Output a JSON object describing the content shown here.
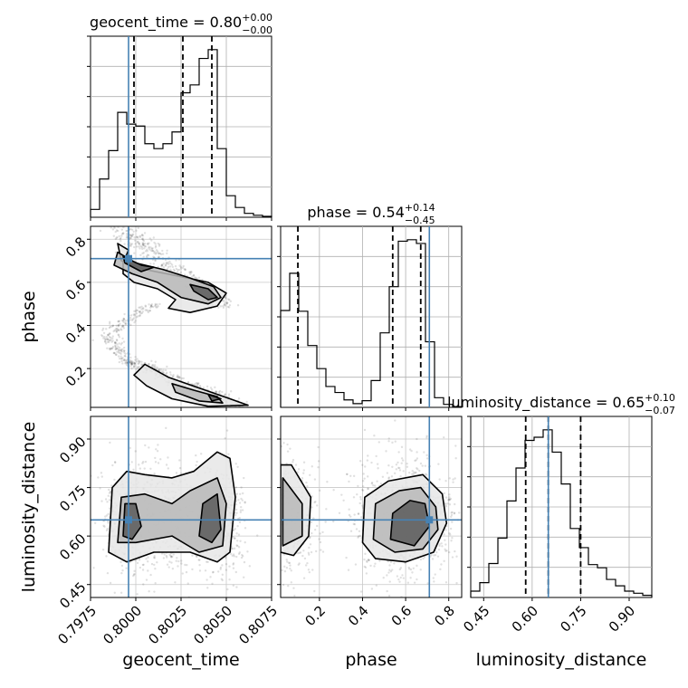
{
  "chart_data": {
    "type": "corner",
    "parameters": [
      {
        "key": "geocent_time",
        "label": "geocent_time",
        "range": [
          0.7975,
          0.8075
        ],
        "truth": 0.7996,
        "title": {
          "name": "geocent_time",
          "median": "0.80",
          "plus": "+0.00",
          "minus": "−0.00"
        },
        "quantiles": [
          0.7999,
          0.8026,
          0.8042
        ],
        "ticks": [
          "0.7975",
          "0.8000",
          "0.8025",
          "0.8050",
          "0.8075"
        ],
        "hist": {
          "edges_range": [
            0.7975,
            0.8075
          ],
          "counts": [
            0.8,
            3.9,
            6.8,
            10.7,
            9.5,
            9.3,
            7.5,
            7.0,
            7.5,
            8.7,
            12.7,
            13.5,
            16.2,
            17.1,
            7.0,
            2.2,
            1.0,
            0.4,
            0.2,
            0.1
          ]
        }
      },
      {
        "key": "phase",
        "label": "phase",
        "range": [
          0.02,
          0.86
        ],
        "truth": 0.71,
        "title": {
          "name": "phase",
          "median": "0.54",
          "plus": "+0.14",
          "minus": "−0.45"
        },
        "quantiles": [
          0.1,
          0.54,
          0.67
        ],
        "ticks": [
          "0.2",
          "0.4",
          "0.6",
          "0.8"
        ],
        "hist": {
          "edges_range": [
            0.02,
            0.86
          ],
          "counts": [
            13.0,
            18.0,
            12.9,
            8.3,
            5.2,
            2.8,
            2.0,
            1.0,
            0.5,
            0.9,
            3.6,
            10.0,
            16.2,
            22.3,
            22.5,
            22.0,
            8.8,
            1.3,
            0.4,
            0.1
          ]
        }
      },
      {
        "key": "luminosity_distance",
        "label": "luminosity_distance",
        "range": [
          0.41,
          0.97
        ],
        "truth": 0.65,
        "title": {
          "name": "luminosity_distance",
          "median": "0.65",
          "plus": "+0.10",
          "minus": "−0.07"
        },
        "quantiles": [
          0.58,
          0.65,
          0.75
        ],
        "ticks": [
          "0.45",
          "0.60",
          "0.75",
          "0.90"
        ],
        "hist": {
          "edges_range": [
            0.41,
            0.97
          ],
          "counts": [
            0.6,
            1.4,
            3.2,
            5.6,
            9.1,
            12.2,
            14.8,
            15.1,
            15.8,
            13.7,
            10.7,
            6.5,
            4.7,
            3.1,
            2.8,
            1.7,
            1.1,
            0.6,
            0.4,
            0.2
          ]
        }
      }
    ],
    "contours": {
      "phase_vs_geocent_time": [
        {
          "level": 1,
          "shapes": [
            [
              [
                0.8005,
                0.66
              ],
              [
                0.8023,
                0.63
              ],
              [
                0.804,
                0.6
              ],
              [
                0.805,
                0.55
              ],
              [
                0.8045,
                0.49
              ],
              [
                0.803,
                0.46
              ],
              [
                0.8018,
                0.48
              ],
              [
                0.8022,
                0.52
              ],
              [
                0.8012,
                0.57
              ],
              [
                0.7999,
                0.6
              ],
              [
                0.7993,
                0.64
              ],
              [
                0.7993,
                0.69
              ],
              [
                0.7996,
                0.75
              ],
              [
                0.799,
                0.78
              ],
              [
                0.7992,
                0.7
              ]
            ],
            [
              [
                0.8005,
                0.22
              ],
              [
                0.8018,
                0.16
              ],
              [
                0.8035,
                0.11
              ],
              [
                0.8052,
                0.06
              ],
              [
                0.8062,
                0.03
              ],
              [
                0.804,
                0.025
              ],
              [
                0.802,
                0.06
              ],
              [
                0.8006,
                0.12
              ],
              [
                0.7999,
                0.17
              ]
            ]
          ]
        },
        {
          "level": 2,
          "shapes": [
            [
              [
                0.799,
                0.74
              ],
              [
                0.8,
                0.69
              ],
              [
                0.8015,
                0.66
              ],
              [
                0.803,
                0.62
              ],
              [
                0.8043,
                0.58
              ],
              [
                0.8047,
                0.53
              ],
              [
                0.804,
                0.5
              ],
              [
                0.8025,
                0.53
              ],
              [
                0.8012,
                0.6
              ],
              [
                0.7998,
                0.64
              ],
              [
                0.7988,
                0.68
              ]
            ],
            [
              [
                0.802,
                0.13
              ],
              [
                0.8032,
                0.1
              ],
              [
                0.8045,
                0.07
              ],
              [
                0.8048,
                0.04
              ],
              [
                0.8035,
                0.05
              ],
              [
                0.8022,
                0.09
              ]
            ]
          ]
        },
        {
          "level": 3,
          "shapes": [
            [
              [
                0.7993,
                0.72
              ],
              [
                0.8003,
                0.68
              ],
              [
                0.801,
                0.67
              ],
              [
                0.8003,
                0.65
              ],
              [
                0.7994,
                0.69
              ]
            ],
            [
              [
                0.803,
                0.59
              ],
              [
                0.804,
                0.57
              ],
              [
                0.8045,
                0.53
              ],
              [
                0.804,
                0.52
              ],
              [
                0.8032,
                0.56
              ]
            ],
            [
              [
                0.804,
                0.08
              ],
              [
                0.8047,
                0.06
              ],
              [
                0.8042,
                0.05
              ]
            ]
          ]
        }
      ],
      "luminosity_distance_vs_geocent_time": [
        {
          "level": 1,
          "shapes": [
            [
              [
                0.7985,
                0.55
              ],
              [
                0.7987,
                0.75
              ],
              [
                0.7995,
                0.8
              ],
              [
                0.8005,
                0.79
              ],
              [
                0.802,
                0.78
              ],
              [
                0.8032,
                0.8
              ],
              [
                0.8045,
                0.86
              ],
              [
                0.8052,
                0.84
              ],
              [
                0.8055,
                0.72
              ],
              [
                0.8052,
                0.55
              ],
              [
                0.8045,
                0.52
              ],
              [
                0.803,
                0.55
              ],
              [
                0.801,
                0.55
              ],
              [
                0.7995,
                0.52
              ]
            ]
          ]
        },
        {
          "level": 2,
          "shapes": [
            [
              [
                0.799,
                0.58
              ],
              [
                0.7992,
                0.72
              ],
              [
                0.8005,
                0.73
              ],
              [
                0.802,
                0.7
              ],
              [
                0.803,
                0.74
              ],
              [
                0.8045,
                0.78
              ],
              [
                0.805,
                0.7
              ],
              [
                0.8048,
                0.57
              ],
              [
                0.8035,
                0.55
              ],
              [
                0.802,
                0.6
              ],
              [
                0.8,
                0.58
              ]
            ]
          ]
        },
        {
          "level": 3,
          "shapes": [
            [
              [
                0.7993,
                0.6
              ],
              [
                0.7994,
                0.7
              ],
              [
                0.8,
                0.7
              ],
              [
                0.8003,
                0.63
              ],
              [
                0.7998,
                0.59
              ]
            ],
            [
              [
                0.8035,
                0.6
              ],
              [
                0.8037,
                0.7
              ],
              [
                0.8045,
                0.73
              ],
              [
                0.8047,
                0.62
              ],
              [
                0.8042,
                0.58
              ]
            ]
          ]
        }
      ],
      "luminosity_distance_vs_phase": [
        {
          "level": 1,
          "shapes": [
            [
              [
                0.02,
                0.55
              ],
              [
                0.02,
                0.82
              ],
              [
                0.07,
                0.82
              ],
              [
                0.16,
                0.72
              ],
              [
                0.15,
                0.6
              ],
              [
                0.08,
                0.54
              ]
            ],
            [
              [
                0.4,
                0.58
              ],
              [
                0.41,
                0.72
              ],
              [
                0.52,
                0.77
              ],
              [
                0.68,
                0.79
              ],
              [
                0.77,
                0.73
              ],
              [
                0.79,
                0.64
              ],
              [
                0.73,
                0.55
              ],
              [
                0.6,
                0.52
              ],
              [
                0.46,
                0.53
              ]
            ]
          ]
        },
        {
          "level": 2,
          "shapes": [
            [
              [
                0.03,
                0.57
              ],
              [
                0.03,
                0.78
              ],
              [
                0.12,
                0.7
              ],
              [
                0.12,
                0.6
              ]
            ],
            [
              [
                0.45,
                0.59
              ],
              [
                0.46,
                0.7
              ],
              [
                0.57,
                0.74
              ],
              [
                0.67,
                0.75
              ],
              [
                0.74,
                0.69
              ],
              [
                0.75,
                0.62
              ],
              [
                0.68,
                0.56
              ],
              [
                0.55,
                0.55
              ]
            ]
          ]
        },
        {
          "level": 3,
          "shapes": [
            [
              [
                0.53,
                0.59
              ],
              [
                0.54,
                0.67
              ],
              [
                0.62,
                0.71
              ],
              [
                0.69,
                0.7
              ],
              [
                0.71,
                0.63
              ],
              [
                0.64,
                0.57
              ]
            ]
          ]
        }
      ]
    },
    "truth_color": "#4682b4",
    "quantile_style": "dashed",
    "grid": true
  }
}
